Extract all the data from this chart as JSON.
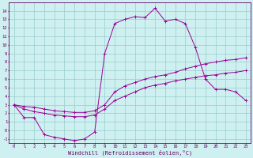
{
  "title": "",
  "xlabel": "Windchill (Refroidissement éolien,°C)",
  "bg_color": "#cff0f0",
  "line_color": "#990099",
  "grid_color": "#99cccc",
  "xlim": [
    -0.5,
    23.5
  ],
  "ylim": [
    -1.5,
    15.0
  ],
  "xticks": [
    0,
    1,
    2,
    3,
    4,
    5,
    6,
    7,
    8,
    9,
    10,
    11,
    12,
    13,
    14,
    15,
    16,
    17,
    18,
    19,
    20,
    21,
    22,
    23
  ],
  "yticks": [
    -1,
    0,
    1,
    2,
    3,
    4,
    5,
    6,
    7,
    8,
    9,
    10,
    11,
    12,
    13,
    14
  ],
  "line1_x": [
    0,
    1,
    2,
    3,
    4,
    5,
    6,
    7,
    8,
    9,
    10,
    11,
    12,
    13,
    14,
    15,
    16,
    17,
    18,
    19,
    20,
    21,
    22,
    23
  ],
  "line1_y": [
    3.0,
    1.5,
    1.5,
    -0.5,
    -0.8,
    -1.0,
    -1.2,
    -1.0,
    -0.2,
    9.0,
    12.5,
    13.0,
    13.3,
    13.2,
    14.3,
    12.8,
    13.0,
    12.5,
    9.7,
    6.0,
    4.8,
    4.8,
    4.5,
    3.5
  ],
  "line2_x": [
    0,
    1,
    2,
    3,
    4,
    5,
    6,
    7,
    8,
    9,
    10,
    11,
    12,
    13,
    14,
    15,
    16,
    17,
    18,
    19,
    20,
    21,
    22,
    23
  ],
  "line2_y": [
    3.0,
    2.8,
    2.7,
    2.5,
    2.3,
    2.2,
    2.1,
    2.1,
    2.3,
    3.0,
    4.5,
    5.2,
    5.6,
    6.0,
    6.3,
    6.5,
    6.8,
    7.2,
    7.5,
    7.8,
    8.0,
    8.2,
    8.3,
    8.5
  ],
  "line3_x": [
    0,
    1,
    2,
    3,
    4,
    5,
    6,
    7,
    8,
    9,
    10,
    11,
    12,
    13,
    14,
    15,
    16,
    17,
    18,
    19,
    20,
    21,
    22,
    23
  ],
  "line3_y": [
    3.0,
    2.5,
    2.2,
    2.0,
    1.8,
    1.7,
    1.6,
    1.6,
    1.8,
    2.5,
    3.5,
    4.0,
    4.5,
    5.0,
    5.3,
    5.5,
    5.8,
    6.0,
    6.2,
    6.4,
    6.5,
    6.7,
    6.8,
    7.0
  ]
}
